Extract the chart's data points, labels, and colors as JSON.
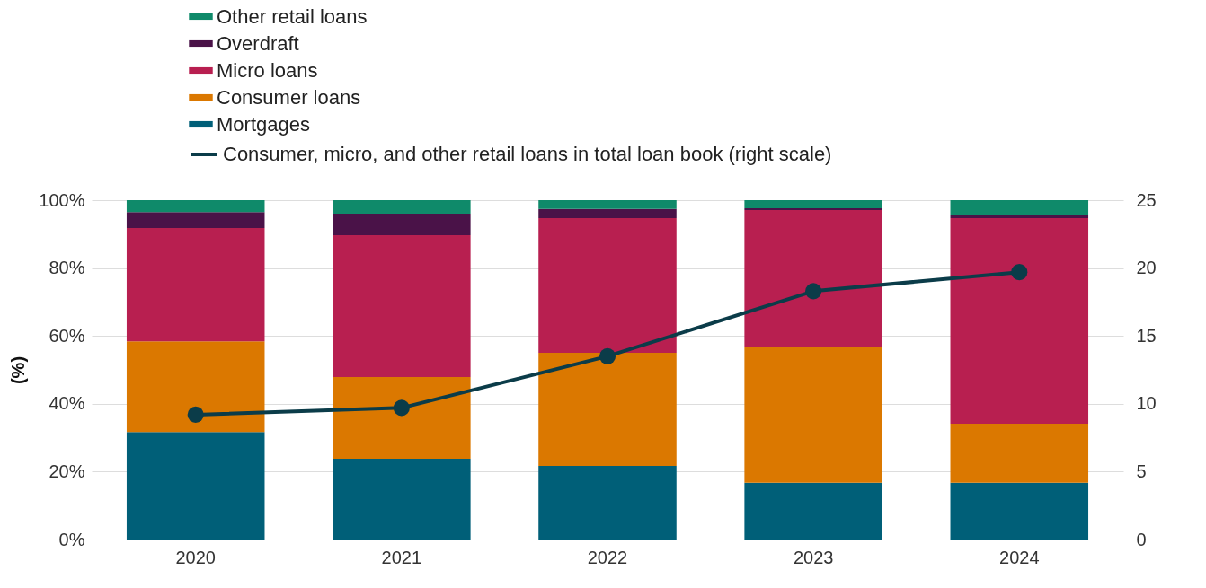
{
  "chart_data": {
    "type": "bar",
    "stacked": true,
    "ylabel": "(%)",
    "categories": [
      "2020",
      "2021",
      "2022",
      "2023",
      "2024"
    ],
    "ylim": [
      0,
      100
    ],
    "yticks": [
      {
        "value": 0,
        "label": "0%"
      },
      {
        "value": 20,
        "label": "20%"
      },
      {
        "value": 40,
        "label": "40%"
      },
      {
        "value": 60,
        "label": "60%"
      },
      {
        "value": 80,
        "label": "80%"
      },
      {
        "value": 100,
        "label": "100%"
      }
    ],
    "y2lim": [
      0,
      25
    ],
    "y2ticks": [
      0,
      5,
      10,
      15,
      20,
      25
    ],
    "grid": "y",
    "legend": "top left",
    "series": [
      {
        "name": "Mortgages",
        "color": "#005f78",
        "values": [
          31.7,
          23.8,
          21.7,
          16.7,
          16.7
        ]
      },
      {
        "name": "Consumer loans",
        "color": "#db7800",
        "values": [
          26.7,
          24.1,
          33.3,
          40.2,
          17.4
        ]
      },
      {
        "name": "Micro loans",
        "color": "#b81f50",
        "values": [
          33.4,
          41.8,
          39.7,
          40.2,
          60.6
        ]
      },
      {
        "name": "Overdraft",
        "color": "#4a1248",
        "values": [
          4.7,
          6.3,
          2.7,
          0.5,
          0.8
        ]
      },
      {
        "name": "Other retail loans",
        "color": "#0f8a6a",
        "values": [
          3.5,
          4.0,
          2.6,
          2.4,
          4.5
        ]
      },
      {
        "name": "Consumer, micro, and other retail loans in total loan book (right scale)",
        "color": "#0b3c49",
        "type": "line",
        "axis": "y2",
        "marker": "circle",
        "values": [
          9.2,
          9.7,
          13.5,
          18.3,
          19.7
        ]
      }
    ]
  }
}
